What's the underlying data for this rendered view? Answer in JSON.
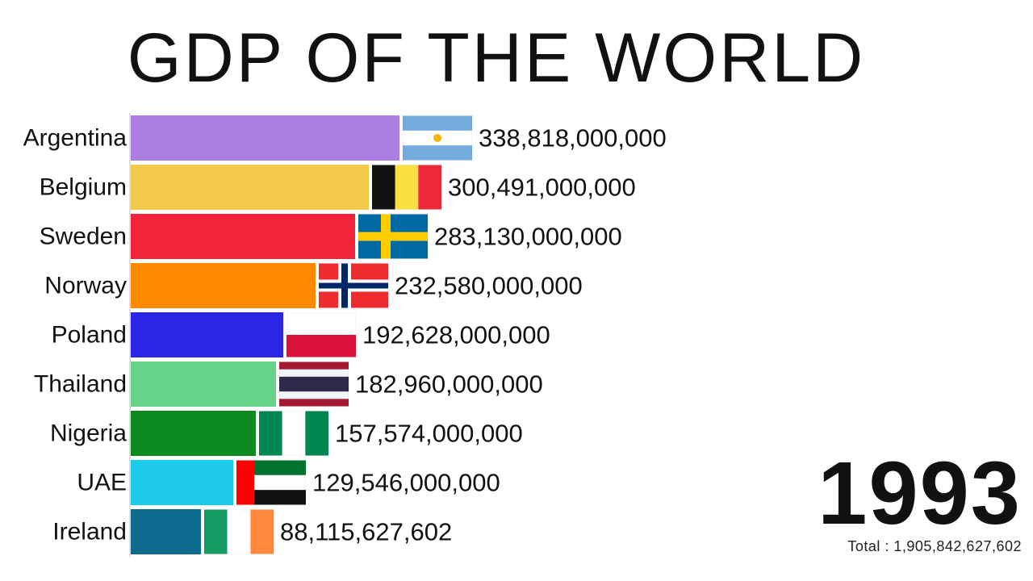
{
  "title": "GDP OF THE WORLD",
  "year": "1993",
  "total_text": "Total : 1,905,842,627,602",
  "chart_data": {
    "type": "bar",
    "orientation": "horizontal",
    "categories": [
      "Argentina",
      "Belgium",
      "Sweden",
      "Norway",
      "Poland",
      "Thailand",
      "Nigeria",
      "UAE",
      "Ireland"
    ],
    "values": [
      338818000000,
      300491000000,
      283130000000,
      232580000000,
      192628000000,
      182960000000,
      157574000000,
      129546000000,
      88115627602
    ],
    "value_labels": [
      "338,818,000,000",
      "300,491,000,000",
      "283,130,000,000",
      "232,580,000,000",
      "192,628,000,000",
      "182,960,000,000",
      "157,574,000,000",
      "129,546,000,000",
      "88,115,627,602"
    ],
    "colors": [
      "#ab7fe0",
      "#f2c84b",
      "#f2243a",
      "#ff8a00",
      "#2b25e6",
      "#66d48a",
      "#0c8a1f",
      "#1ccbe8",
      "#0f6b8e"
    ],
    "flag_icons": [
      "flag-argentina-icon",
      "flag-belgium-icon",
      "flag-sweden-icon",
      "flag-norway-icon",
      "flag-poland-icon",
      "flag-thailand-icon",
      "flag-nigeria-icon",
      "flag-uae-icon",
      "flag-ireland-icon"
    ]
  }
}
